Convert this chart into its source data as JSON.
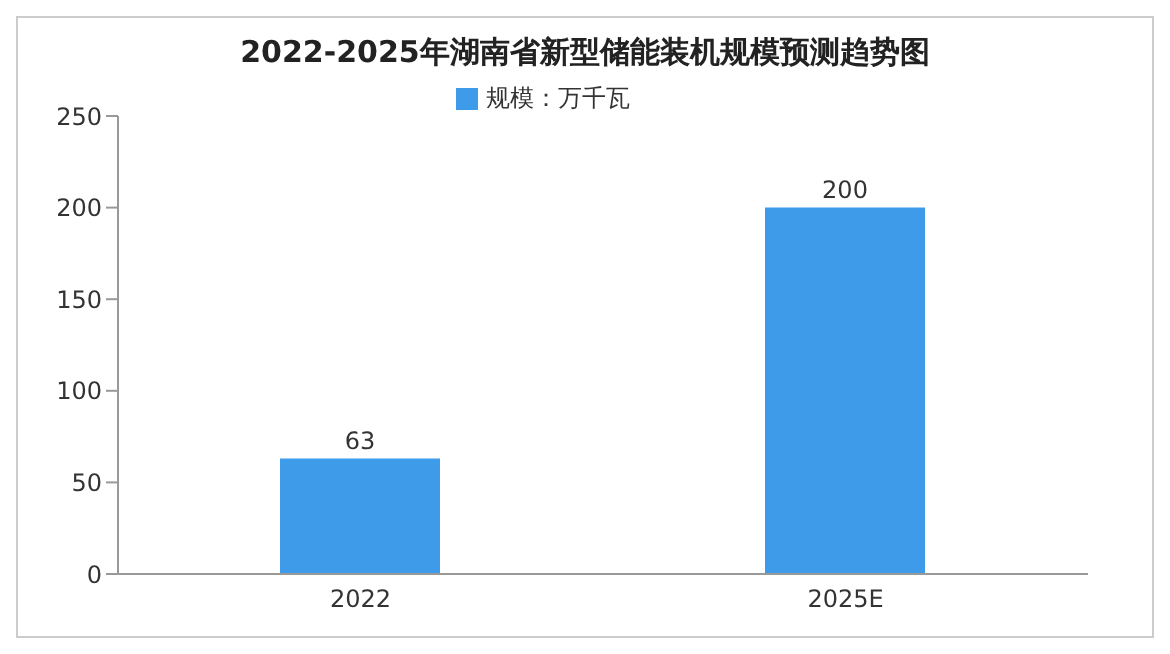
{
  "chart_data": {
    "type": "bar",
    "title": "2022-2025年湖南省新型储能装机规模预测趋势图",
    "categories": [
      "2022",
      "2025E"
    ],
    "series": [
      {
        "name": "规模：万千瓦",
        "color": "#3d9be9",
        "values": [
          63,
          200
        ]
      }
    ],
    "ylim": [
      0,
      250
    ],
    "yticks": [
      0,
      50,
      100,
      150,
      200,
      250
    ],
    "legend": "top",
    "data_labels": true
  }
}
